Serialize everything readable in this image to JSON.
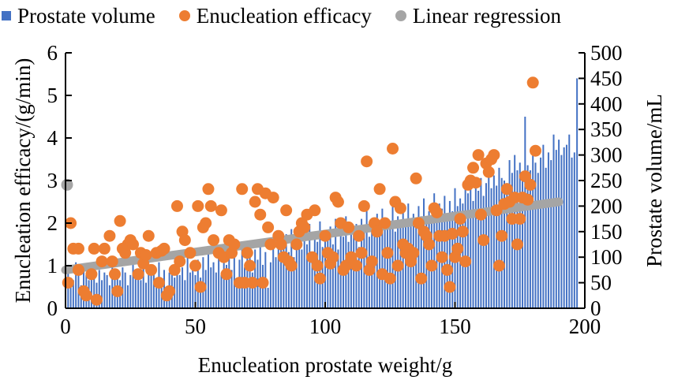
{
  "chart_data": {
    "type": "bar+scatter+line",
    "title": "",
    "legend": {
      "placement": "top",
      "entries": [
        {
          "name": "Prostate volume",
          "marker": "square",
          "color": "#4472c4"
        },
        {
          "name": "Enucleation efficacy",
          "marker": "circle",
          "color": "#ed7d31"
        },
        {
          "name": "Linear regression",
          "marker": "circle",
          "color": "#a5a5a5"
        }
      ]
    },
    "xlabel": "Enucleation prostate weight/g",
    "ylabel_left": "Enucleation efficacy/(g/min)",
    "ylabel_right": "Prostate volume/mL",
    "xlim": [
      0,
      200
    ],
    "ylim_left": [
      0,
      6
    ],
    "ylim_right": [
      0,
      500
    ],
    "x_ticks": [
      "0",
      "50",
      "100",
      "150",
      "200"
    ],
    "y_ticks_left": [
      "0",
      "1",
      "2",
      "3",
      "4",
      "5",
      "6"
    ],
    "y_ticks_right": [
      "0",
      "50",
      "100",
      "150",
      "200",
      "250",
      "300",
      "350",
      "400",
      "450",
      "500"
    ],
    "grid": false,
    "series": [
      {
        "name": "Prostate volume",
        "type": "bar",
        "axis": "right",
        "color": "#4472c4",
        "x": [
          1,
          2,
          3,
          4,
          5,
          6,
          7,
          8,
          9,
          10,
          11,
          12,
          13,
          14,
          15,
          16,
          17,
          18,
          19,
          20,
          21,
          22,
          23,
          24,
          25,
          26,
          27,
          28,
          29,
          30,
          31,
          32,
          33,
          34,
          35,
          36,
          37,
          38,
          39,
          40,
          41,
          42,
          43,
          44,
          45,
          46,
          47,
          48,
          49,
          50,
          51,
          52,
          53,
          54,
          55,
          56,
          57,
          58,
          59,
          60,
          61,
          62,
          63,
          64,
          65,
          66,
          67,
          68,
          69,
          70,
          71,
          72,
          73,
          74,
          75,
          76,
          77,
          78,
          79,
          80,
          81,
          82,
          83,
          84,
          85,
          86,
          87,
          88,
          89,
          90,
          91,
          92,
          93,
          94,
          95,
          96,
          97,
          98,
          99,
          100,
          101,
          102,
          103,
          104,
          105,
          106,
          107,
          108,
          109,
          110,
          111,
          112,
          113,
          114,
          115,
          116,
          117,
          118,
          119,
          120,
          121,
          122,
          123,
          124,
          125,
          126,
          127,
          128,
          129,
          130,
          131,
          132,
          133,
          134,
          135,
          136,
          137,
          138,
          139,
          140,
          141,
          142,
          143,
          144,
          145,
          146,
          147,
          148,
          149,
          150,
          151,
          152,
          153,
          154,
          155,
          156,
          157,
          158,
          159,
          160,
          161,
          162,
          163,
          164,
          165,
          166,
          167,
          168,
          169,
          170,
          171,
          172,
          173,
          174,
          175,
          176,
          177,
          178,
          179,
          180,
          181,
          182,
          183,
          184,
          185,
          186,
          187,
          188,
          189,
          190,
          191,
          192,
          193,
          194,
          195,
          196,
          197
        ],
        "values": [
          85,
          60,
          55,
          90,
          70,
          45,
          75,
          65,
          55,
          80,
          60,
          50,
          75,
          55,
          70,
          65,
          45,
          85,
          60,
          75,
          55,
          80,
          70,
          45,
          65,
          90,
          60,
          75,
          55,
          85,
          50,
          70,
          65,
          80,
          60,
          90,
          55,
          75,
          40,
          70,
          85,
          60,
          95,
          65,
          80,
          55,
          110,
          70,
          85,
          65,
          95,
          60,
          100,
          75,
          120,
          80,
          90,
          70,
          105,
          65,
          110,
          85,
          100,
          75,
          115,
          60,
          95,
          120,
          80,
          105,
          130,
          70,
          115,
          95,
          125,
          85,
          110,
          40,
          90,
          120,
          100,
          130,
          150,
          120,
          145,
          110,
          155,
          100,
          135,
          160,
          115,
          140,
          125,
          165,
          105,
          150,
          130,
          170,
          120,
          145,
          135,
          160,
          125,
          175,
          115,
          165,
          140,
          180,
          130,
          155,
          145,
          165,
          120,
          175,
          150,
          190,
          140,
          170,
          160,
          185,
          145,
          195,
          155,
          175,
          165,
          200,
          150,
          180,
          170,
          195,
          175,
          205,
          160,
          185,
          170,
          200,
          180,
          215,
          165,
          190,
          175,
          225,
          185,
          205,
          195,
          220,
          170,
          210,
          190,
          235,
          200,
          215,
          205,
          245,
          225,
          240,
          210,
          250,
          230,
          255,
          220,
          245,
          265,
          235,
          260,
          240,
          275,
          255,
          250,
          245,
          290,
          265,
          300,
          270,
          285,
          260,
          375,
          280,
          270,
          300,
          285,
          265,
          295,
          320,
          275,
          305,
          290,
          340,
          310,
          330,
          300,
          315,
          320,
          340,
          295,
          305,
          450
        ]
      },
      {
        "name": "Enucleation efficacy",
        "type": "scatter",
        "axis": "left",
        "color": "#ed7d31",
        "points": [
          [
            1,
            0.6
          ],
          [
            2,
            2.0
          ],
          [
            3,
            1.4
          ],
          [
            5,
            1.4
          ],
          [
            5,
            0.9
          ],
          [
            7,
            0.4
          ],
          [
            8,
            0.3
          ],
          [
            10,
            0.8
          ],
          [
            11,
            1.4
          ],
          [
            12,
            0.2
          ],
          [
            14,
            1.1
          ],
          [
            15,
            1.4
          ],
          [
            17,
            1.7
          ],
          [
            18,
            1.1
          ],
          [
            19,
            0.8
          ],
          [
            20,
            0.4
          ],
          [
            21,
            2.05
          ],
          [
            22,
            1.4
          ],
          [
            23,
            1.3
          ],
          [
            24,
            1.5
          ],
          [
            25,
            1.6
          ],
          [
            26,
            1.5
          ],
          [
            28,
            0.8
          ],
          [
            29,
            1.3
          ],
          [
            30,
            1.05
          ],
          [
            31,
            1.25
          ],
          [
            32,
            1.7
          ],
          [
            33,
            0.9
          ],
          [
            35,
            1.3
          ],
          [
            36,
            0.6
          ],
          [
            37,
            1.35
          ],
          [
            38,
            1.4
          ],
          [
            39,
            0.3
          ],
          [
            40,
            0.4
          ],
          [
            42,
            0.9
          ],
          [
            43,
            2.4
          ],
          [
            44,
            1.1
          ],
          [
            45,
            1.8
          ],
          [
            46,
            1.6
          ],
          [
            48,
            1.3
          ],
          [
            50,
            1.0
          ],
          [
            51,
            2.4
          ],
          [
            52,
            0.5
          ],
          [
            53,
            1.9
          ],
          [
            54,
            2.0
          ],
          [
            55,
            2.8
          ],
          [
            56,
            2.4
          ],
          [
            57,
            1.6
          ],
          [
            59,
            1.3
          ],
          [
            60,
            2.3
          ],
          [
            61,
            1.2
          ],
          [
            62,
            0.8
          ],
          [
            63,
            1.6
          ],
          [
            64,
            1.3
          ],
          [
            65,
            1.5
          ],
          [
            67,
            0.6
          ],
          [
            68,
            2.8
          ],
          [
            69,
            0.6
          ],
          [
            70,
            1.3
          ],
          [
            71,
            1.0
          ],
          [
            72,
            0.6
          ],
          [
            73,
            2.5
          ],
          [
            74,
            2.8
          ],
          [
            75,
            2.2
          ],
          [
            76,
            0.6
          ],
          [
            77,
            2.7
          ],
          [
            78,
            1.9
          ],
          [
            79,
            1.5
          ],
          [
            80,
            2.6
          ],
          [
            82,
            1.7
          ],
          [
            83,
            1.5
          ],
          [
            84,
            1.2
          ],
          [
            85,
            2.3
          ],
          [
            86,
            1.1
          ],
          [
            87,
            1.0
          ],
          [
            89,
            1.5
          ],
          [
            90,
            1.8
          ],
          [
            91,
            2.0
          ],
          [
            92,
            1.9
          ],
          [
            93,
            2.2
          ],
          [
            95,
            1.2
          ],
          [
            96,
            2.3
          ],
          [
            97,
            1.0
          ],
          [
            98,
            0.7
          ],
          [
            100,
            1.7
          ],
          [
            101,
            1.3
          ],
          [
            102,
            1.05
          ],
          [
            103,
            1.2
          ],
          [
            104,
            2.6
          ],
          [
            105,
            2.5
          ],
          [
            106,
            2.0
          ],
          [
            107,
            0.9
          ],
          [
            108,
            1.0
          ],
          [
            109,
            1.9
          ],
          [
            110,
            1.2
          ],
          [
            112,
            1.0
          ],
          [
            113,
            1.7
          ],
          [
            114,
            1.3
          ],
          [
            115,
            2.4
          ],
          [
            116,
            3.45
          ],
          [
            117,
            0.9
          ],
          [
            118,
            1.1
          ],
          [
            119,
            2.0
          ],
          [
            120,
            1.8
          ],
          [
            121,
            2.8
          ],
          [
            122,
            0.8
          ],
          [
            123,
            2.0
          ],
          [
            124,
            1.3
          ],
          [
            125,
            0.7
          ],
          [
            126,
            3.75
          ],
          [
            127,
            2.5
          ],
          [
            128,
            1.0
          ],
          [
            129,
            2.35
          ],
          [
            130,
            1.5
          ],
          [
            131,
            1.3
          ],
          [
            132,
            1.4
          ],
          [
            133,
            1.1
          ],
          [
            134,
            1.3
          ],
          [
            135,
            3.05
          ],
          [
            136,
            2.0
          ],
          [
            137,
            0.7
          ],
          [
            138,
            1.8
          ],
          [
            139,
            1.7
          ],
          [
            140,
            1.5
          ],
          [
            141,
            1.0
          ],
          [
            142,
            2.35
          ],
          [
            143,
            2.25
          ],
          [
            144,
            1.7
          ],
          [
            145,
            1.2
          ],
          [
            146,
            1.7
          ],
          [
            147,
            0.9
          ],
          [
            148,
            0.5
          ],
          [
            149,
            1.75
          ],
          [
            150,
            1.2
          ],
          [
            151,
            1.4
          ],
          [
            152,
            2.1
          ],
          [
            153,
            1.8
          ],
          [
            154,
            1.1
          ],
          [
            155,
            2.9
          ],
          [
            156,
            3.0
          ],
          [
            157,
            3.3
          ],
          [
            158,
            2.95
          ],
          [
            159,
            3.6
          ],
          [
            160,
            2.2
          ],
          [
            161,
            1.6
          ],
          [
            162,
            3.4
          ],
          [
            163,
            3.2
          ],
          [
            164,
            3.5
          ],
          [
            165,
            3.6
          ],
          [
            166,
            2.3
          ],
          [
            167,
            1.0
          ],
          [
            168,
            1.7
          ],
          [
            169,
            2.45
          ],
          [
            170,
            2.8
          ],
          [
            171,
            2.5
          ],
          [
            172,
            2.1
          ],
          [
            173,
            2.6
          ],
          [
            174,
            1.5
          ],
          [
            175,
            2.1
          ],
          [
            176,
            2.6
          ],
          [
            177,
            3.1
          ],
          [
            178,
            2.55
          ],
          [
            179,
            2.9
          ],
          [
            180,
            5.3
          ],
          [
            181,
            3.7
          ]
        ]
      },
      {
        "name": "Linear regression",
        "type": "line",
        "axis": "left",
        "color": "#a5a5a5",
        "x": [
          0,
          190
        ],
        "y": [
          0.9,
          2.5
        ],
        "extra_points": [
          [
            0,
            2.9
          ]
        ]
      }
    ]
  }
}
